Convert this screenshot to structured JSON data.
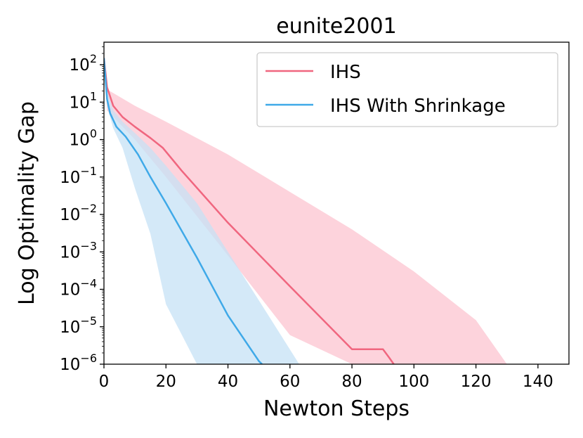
{
  "chart_data": {
    "type": "line",
    "title": "eunite2001",
    "xlabel": "Newton Steps",
    "ylabel": "Log Optimality Gap",
    "xlim": [
      0,
      150
    ],
    "ylim": [
      1e-06,
      400
    ],
    "yscale": "log",
    "xticks": [
      0,
      20,
      40,
      60,
      80,
      100,
      120,
      140
    ],
    "yticks": [
      {
        "base": "10",
        "exp": "2",
        "value": 100
      },
      {
        "base": "10",
        "exp": "1",
        "value": 10
      },
      {
        "base": "10",
        "exp": "0",
        "value": 1
      },
      {
        "base": "10",
        "exp": "−1",
        "value": 0.1
      },
      {
        "base": "10",
        "exp": "−2",
        "value": 0.01
      },
      {
        "base": "10",
        "exp": "−3",
        "value": 0.001
      },
      {
        "base": "10",
        "exp": "−4",
        "value": 0.0001
      },
      {
        "base": "10",
        "exp": "−5",
        "value": 1e-05
      },
      {
        "base": "10",
        "exp": "−6",
        "value": 1e-06
      }
    ],
    "grid": false,
    "legend_position": "top-right",
    "series": [
      {
        "name": "IHS",
        "color": "#f0667f",
        "band_color": "#fdd3dc",
        "x": [
          0,
          1,
          3,
          6,
          10,
          15,
          19,
          25,
          40,
          60,
          80,
          90,
          92,
          93.5
        ],
        "y": [
          150,
          25,
          8,
          4,
          2.2,
          1.1,
          0.6,
          0.15,
          0.006,
          0.00012,
          2.5e-06,
          2.5e-06,
          1.5e-06,
          1e-06
        ],
        "band_x": [
          0,
          1,
          10,
          20,
          40,
          60,
          80,
          100,
          120,
          130
        ],
        "band_upper": [
          150,
          22,
          8,
          3,
          0.4,
          0.04,
          0.004,
          0.0003,
          1.5e-05,
          1e-06
        ],
        "band_lower": [
          150,
          6,
          1,
          0.1,
          0.0008,
          6e-06,
          1e-06,
          1e-06,
          1e-06,
          1e-06
        ]
      },
      {
        "name": "IHS With Shrinkage",
        "color": "#3fa9e8",
        "band_color": "#c5e2f5",
        "x": [
          0,
          1,
          2,
          4,
          7,
          11,
          15,
          20,
          30,
          40,
          50,
          51
        ],
        "y": [
          150,
          12,
          5,
          2.2,
          1.2,
          0.4,
          0.1,
          0.02,
          0.0007,
          2e-05,
          1.2e-06,
          1e-06
        ],
        "band_x": [
          0,
          1,
          3,
          6,
          10,
          15,
          20,
          30,
          40,
          50,
          63
        ],
        "band_upper": [
          150,
          20,
          6,
          3,
          1.5,
          0.6,
          0.2,
          0.02,
          0.001,
          5e-05,
          1e-06
        ],
        "band_lower": [
          150,
          8,
          2,
          0.6,
          0.05,
          0.003,
          4e-05,
          1e-06,
          1e-06,
          1e-06,
          1e-06
        ]
      }
    ]
  }
}
